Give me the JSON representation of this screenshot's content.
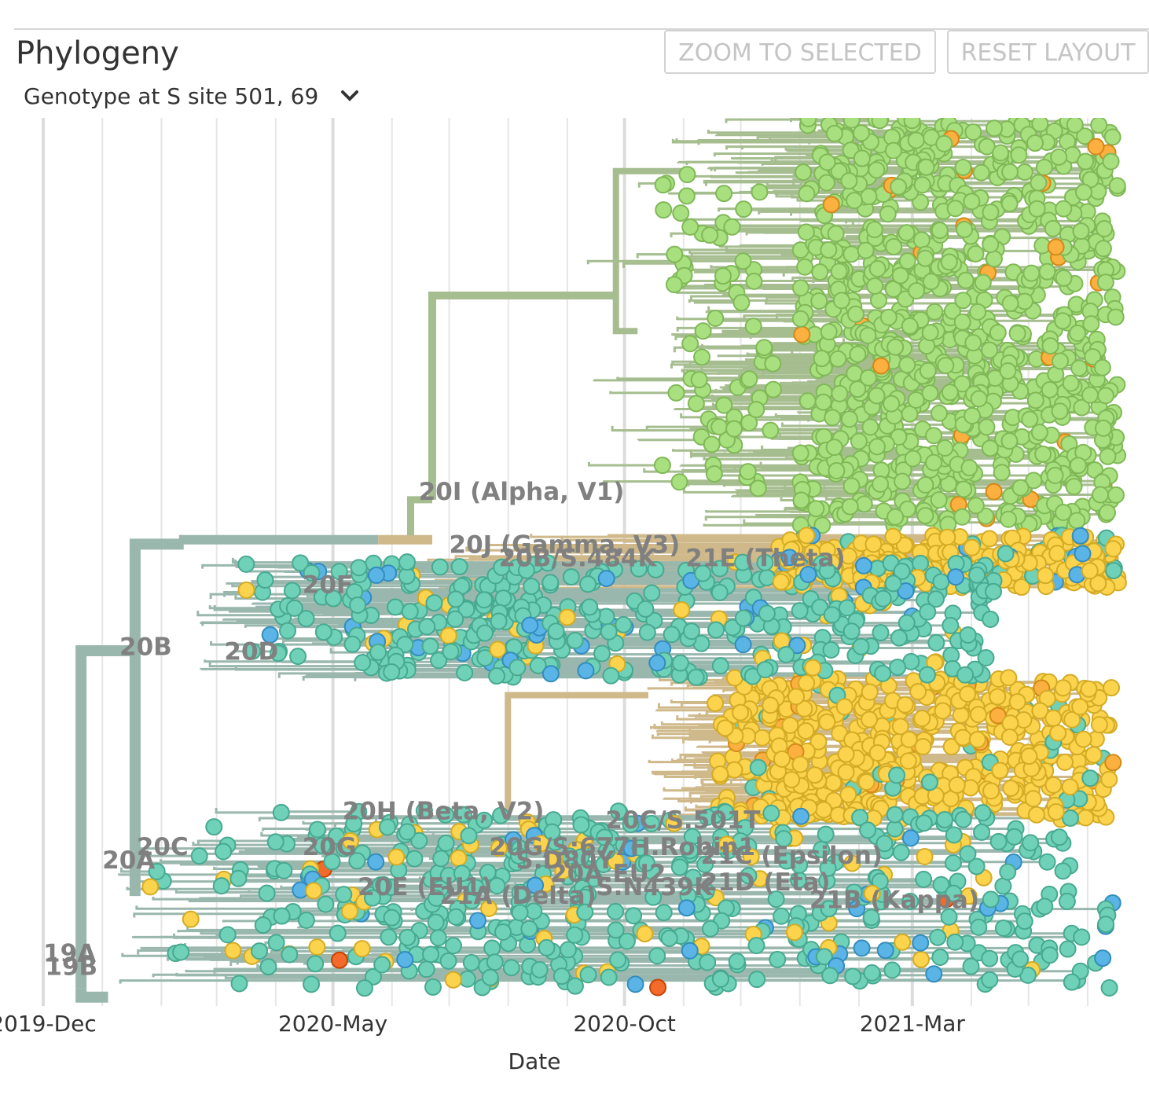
{
  "panel": {
    "title": "Phylogeny",
    "zoom_button": "ZOOM TO SELECTED",
    "reset_button": "RESET LAYOUT",
    "color_by": "Genotype at S site 501, 69"
  },
  "chart_data": {
    "type": "scatter",
    "description_type": "time-resolved phylogenetic tree",
    "xlabel": "Date",
    "x_ticks": [
      "2019-Dec",
      "2020-May",
      "2020-Oct",
      "2021-Mar"
    ],
    "x_range": [
      "2019-12-01",
      "2021-06-20"
    ],
    "colors": {
      "teal": "#6fd1b8",
      "blue": "#5ab4e5",
      "yellow": "#fcd34d",
      "orange": "#fbb040",
      "red_orange": "#f26b2a",
      "green": "#a8e07f",
      "branch_teal": "#9ab7ae",
      "branch_green": "#a5bd8f",
      "branch_tan": "#cfb98a",
      "grid": "#e6e6e6",
      "clade_label": "#808080"
    },
    "clade_labels": [
      {
        "label": "20I (Alpha, V1)",
        "date": "2020-06-15",
        "row": 0.43
      },
      {
        "label": "20J (Gamma, V3)",
        "date": "2020-07-01",
        "row": 0.49
      },
      {
        "label": "20B/S.484K",
        "date": "2020-07-27",
        "row": 0.505
      },
      {
        "label": "21E (Theta)",
        "date": "2020-11-02",
        "row": 0.505
      },
      {
        "label": "20F",
        "date": "2020-04-15",
        "row": 0.535
      },
      {
        "label": "20B",
        "date": "2020-01-10",
        "row": 0.605
      },
      {
        "label": "20D",
        "date": "2020-03-05",
        "row": 0.61
      },
      {
        "label": "20H (Beta, V2)",
        "date": "2020-05-06",
        "row": 0.79
      },
      {
        "label": "20C/S.501T",
        "date": "2020-09-21",
        "row": 0.8
      },
      {
        "label": "20C",
        "date": "2020-01-19",
        "row": 0.83
      },
      {
        "label": "20A",
        "date": "2020-01-01",
        "row": 0.845
      },
      {
        "label": "20G",
        "date": "2020-04-15",
        "row": 0.83
      },
      {
        "label": "20G/S:677H.Robin1",
        "date": "2020-07-22",
        "row": 0.83
      },
      {
        "label": "S.D80Y",
        "date": "2020-08-05",
        "row": 0.845
      },
      {
        "label": "21C (Epsilon)",
        "date": "2020-11-10",
        "row": 0.84
      },
      {
        "label": "20A.EU2",
        "date": "2020-08-23",
        "row": 0.86
      },
      {
        "label": "20E (EU1)",
        "date": "2020-05-14",
        "row": 0.875
      },
      {
        "label": "21A (Delta)",
        "date": "2020-06-26",
        "row": 0.885
      },
      {
        "label": "S.N439K",
        "date": "2020-09-16",
        "row": 0.875
      },
      {
        "label": "21D (Eta)",
        "date": "2020-11-10",
        "row": 0.87
      },
      {
        "label": "21B (Kappa)",
        "date": "2021-01-06",
        "row": 0.89
      },
      {
        "label": "19A",
        "date": "2019-12-01",
        "row": 0.95
      },
      {
        "label": "19B",
        "date": "2019-12-02",
        "row": 0.965
      }
    ]
  }
}
